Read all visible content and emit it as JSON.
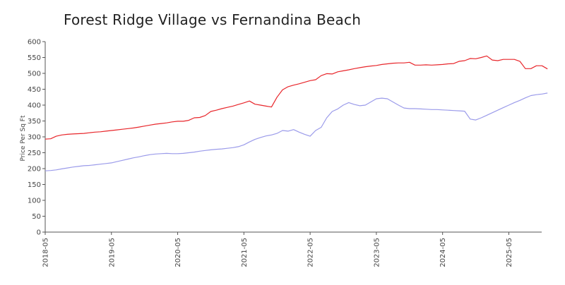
{
  "chart_data": {
    "type": "line",
    "title": "Forest Ridge Village vs Fernandina Beach",
    "xlabel": "",
    "ylabel": "Price Per Sq Ft",
    "ylim": [
      0,
      600
    ],
    "yticks": [
      0,
      50,
      100,
      150,
      200,
      250,
      300,
      350,
      400,
      450,
      500,
      550,
      600
    ],
    "xlim": [
      "2018-05",
      "2025-12"
    ],
    "xticks": [
      "2018-05",
      "2019-05",
      "2020-05",
      "2021-05",
      "2022-05",
      "2023-05",
      "2024-05",
      "2025-05"
    ],
    "grid": false,
    "legend": "none",
    "series": [
      {
        "color": "#e8262b",
        "points": [
          [
            "2018-05",
            293
          ],
          [
            "2018-06",
            294
          ],
          [
            "2018-07",
            302
          ],
          [
            "2018-08",
            306
          ],
          [
            "2018-09",
            308
          ],
          [
            "2018-10",
            309
          ],
          [
            "2018-11",
            310
          ],
          [
            "2018-12",
            311
          ],
          [
            "2019-01",
            313
          ],
          [
            "2019-02",
            315
          ],
          [
            "2019-03",
            316
          ],
          [
            "2019-04",
            318
          ],
          [
            "2019-05",
            320
          ],
          [
            "2019-06",
            322
          ],
          [
            "2019-07",
            324
          ],
          [
            "2019-08",
            326
          ],
          [
            "2019-09",
            328
          ],
          [
            "2019-10",
            331
          ],
          [
            "2019-11",
            334
          ],
          [
            "2019-12",
            337
          ],
          [
            "2020-01",
            340
          ],
          [
            "2020-02",
            342
          ],
          [
            "2020-03",
            344
          ],
          [
            "2020-04",
            347
          ],
          [
            "2020-05",
            349
          ],
          [
            "2020-06",
            349
          ],
          [
            "2020-07",
            352
          ],
          [
            "2020-08",
            360
          ],
          [
            "2020-09",
            361
          ],
          [
            "2020-10",
            367
          ],
          [
            "2020-11",
            380
          ],
          [
            "2020-12",
            384
          ],
          [
            "2021-01",
            389
          ],
          [
            "2021-02",
            393
          ],
          [
            "2021-03",
            397
          ],
          [
            "2021-04",
            402
          ],
          [
            "2021-05",
            407
          ],
          [
            "2021-06",
            413
          ],
          [
            "2021-07",
            403
          ],
          [
            "2021-08",
            400
          ],
          [
            "2021-09",
            397
          ],
          [
            "2021-10",
            394
          ],
          [
            "2021-11",
            425
          ],
          [
            "2021-12",
            448
          ],
          [
            "2022-01",
            458
          ],
          [
            "2022-02",
            463
          ],
          [
            "2022-03",
            467
          ],
          [
            "2022-04",
            472
          ],
          [
            "2022-05",
            477
          ],
          [
            "2022-06",
            480
          ],
          [
            "2022-07",
            493
          ],
          [
            "2022-08",
            499
          ],
          [
            "2022-09",
            498
          ],
          [
            "2022-10",
            505
          ],
          [
            "2022-11",
            508
          ],
          [
            "2022-12",
            511
          ],
          [
            "2023-01",
            515
          ],
          [
            "2023-02",
            518
          ],
          [
            "2023-03",
            521
          ],
          [
            "2023-04",
            523
          ],
          [
            "2023-05",
            525
          ],
          [
            "2023-06",
            528
          ],
          [
            "2023-07",
            530
          ],
          [
            "2023-08",
            532
          ],
          [
            "2023-09",
            533
          ],
          [
            "2023-10",
            533
          ],
          [
            "2023-11",
            535
          ],
          [
            "2023-12",
            526
          ],
          [
            "2024-01",
            526
          ],
          [
            "2024-02",
            527
          ],
          [
            "2024-03",
            526
          ],
          [
            "2024-04",
            527
          ],
          [
            "2024-05",
            528
          ],
          [
            "2024-06",
            530
          ],
          [
            "2024-07",
            531
          ],
          [
            "2024-08",
            538
          ],
          [
            "2024-09",
            540
          ],
          [
            "2024-10",
            547
          ],
          [
            "2024-11",
            546
          ],
          [
            "2024-12",
            550
          ],
          [
            "2025-01",
            555
          ],
          [
            "2025-02",
            542
          ],
          [
            "2025-03",
            540
          ],
          [
            "2025-04",
            544
          ],
          [
            "2025-05",
            544
          ],
          [
            "2025-06",
            544
          ],
          [
            "2025-07",
            538
          ],
          [
            "2025-08",
            515
          ],
          [
            "2025-09",
            515
          ],
          [
            "2025-10",
            524
          ],
          [
            "2025-11",
            524
          ],
          [
            "2025-12",
            514
          ]
        ]
      },
      {
        "color": "#9b9bea",
        "points": [
          [
            "2018-05",
            193
          ],
          [
            "2018-06",
            194
          ],
          [
            "2018-07",
            196
          ],
          [
            "2018-08",
            199
          ],
          [
            "2018-09",
            202
          ],
          [
            "2018-10",
            205
          ],
          [
            "2018-11",
            207
          ],
          [
            "2018-12",
            209
          ],
          [
            "2019-01",
            210
          ],
          [
            "2019-02",
            212
          ],
          [
            "2019-03",
            214
          ],
          [
            "2019-04",
            216
          ],
          [
            "2019-05",
            218
          ],
          [
            "2019-06",
            222
          ],
          [
            "2019-07",
            226
          ],
          [
            "2019-08",
            230
          ],
          [
            "2019-09",
            234
          ],
          [
            "2019-10",
            237
          ],
          [
            "2019-11",
            241
          ],
          [
            "2019-12",
            244
          ],
          [
            "2020-01",
            246
          ],
          [
            "2020-02",
            247
          ],
          [
            "2020-03",
            248
          ],
          [
            "2020-04",
            247
          ],
          [
            "2020-05",
            247
          ],
          [
            "2020-06",
            248
          ],
          [
            "2020-07",
            250
          ],
          [
            "2020-08",
            252
          ],
          [
            "2020-09",
            255
          ],
          [
            "2020-10",
            257
          ],
          [
            "2020-11",
            259
          ],
          [
            "2020-12",
            261
          ],
          [
            "2021-01",
            262
          ],
          [
            "2021-02",
            264
          ],
          [
            "2021-03",
            266
          ],
          [
            "2021-04",
            269
          ],
          [
            "2021-05",
            275
          ],
          [
            "2021-06",
            284
          ],
          [
            "2021-07",
            292
          ],
          [
            "2021-08",
            298
          ],
          [
            "2021-09",
            303
          ],
          [
            "2021-10",
            306
          ],
          [
            "2021-11",
            311
          ],
          [
            "2021-12",
            320
          ],
          [
            "2022-01",
            318
          ],
          [
            "2022-02",
            323
          ],
          [
            "2022-03",
            315
          ],
          [
            "2022-04",
            308
          ],
          [
            "2022-05",
            302
          ],
          [
            "2022-06",
            320
          ],
          [
            "2022-07",
            330
          ],
          [
            "2022-08",
            360
          ],
          [
            "2022-09",
            380
          ],
          [
            "2022-10",
            388
          ],
          [
            "2022-11",
            400
          ],
          [
            "2022-12",
            408
          ],
          [
            "2023-01",
            402
          ],
          [
            "2023-02",
            398
          ],
          [
            "2023-03",
            400
          ],
          [
            "2023-04",
            410
          ],
          [
            "2023-05",
            420
          ],
          [
            "2023-06",
            422
          ],
          [
            "2023-07",
            420
          ],
          [
            "2023-08",
            410
          ],
          [
            "2023-09",
            400
          ],
          [
            "2023-10",
            391
          ],
          [
            "2023-11",
            389
          ],
          [
            "2023-12",
            389
          ],
          [
            "2024-01",
            388
          ],
          [
            "2024-02",
            387
          ],
          [
            "2024-03",
            386
          ],
          [
            "2024-04",
            386
          ],
          [
            "2024-05",
            385
          ],
          [
            "2024-06",
            384
          ],
          [
            "2024-07",
            383
          ],
          [
            "2024-08",
            382
          ],
          [
            "2024-09",
            381
          ],
          [
            "2024-10",
            356
          ],
          [
            "2024-11",
            353
          ],
          [
            "2024-12",
            360
          ],
          [
            "2025-01",
            368
          ],
          [
            "2025-02",
            376
          ],
          [
            "2025-03",
            384
          ],
          [
            "2025-04",
            392
          ],
          [
            "2025-05",
            400
          ],
          [
            "2025-06",
            408
          ],
          [
            "2025-07",
            415
          ],
          [
            "2025-08",
            423
          ],
          [
            "2025-09",
            430
          ],
          [
            "2025-10",
            433
          ],
          [
            "2025-11",
            435
          ],
          [
            "2025-12",
            438
          ]
        ]
      }
    ]
  }
}
